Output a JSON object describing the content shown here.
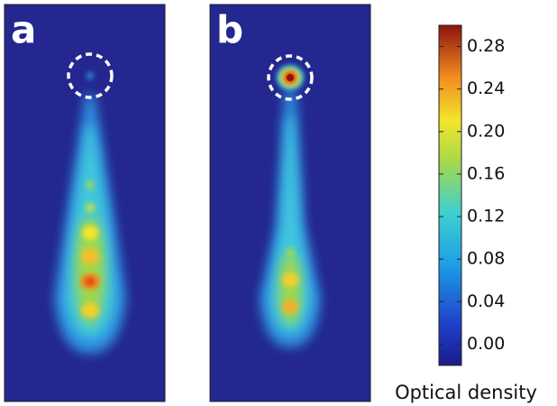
{
  "chart_data": {
    "type": "image",
    "panels": [
      "a",
      "b"
    ],
    "colorbar_label": "Optical density",
    "colormap": "jet",
    "ylim": [
      -0.02,
      0.3
    ],
    "yticks": [
      {
        "value": 0,
        "label": "0.00"
      },
      0.04,
      0.08,
      0.12,
      0.16,
      {
        "value": 0.2,
        "label": "0.20"
      },
      0.24,
      0.28
    ]
  }
}
